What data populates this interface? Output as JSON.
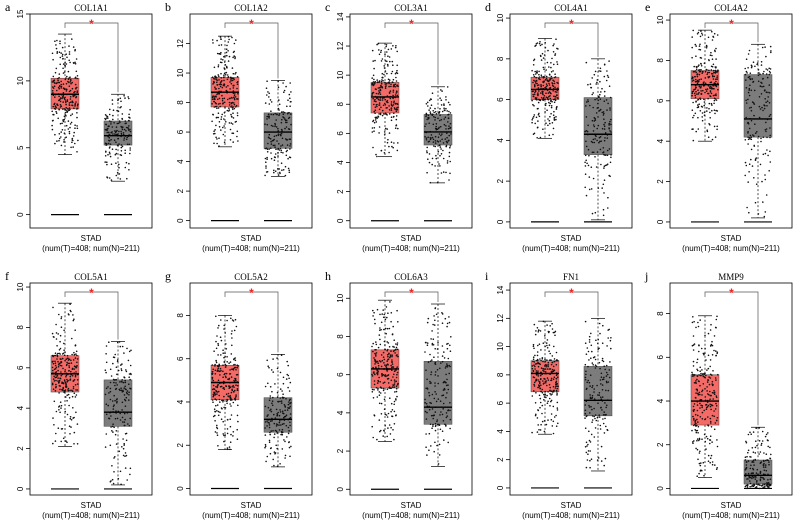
{
  "colors": {
    "tumor_box": "#f36a66",
    "normal_box": "#7c7c7c",
    "significance": "#e8262a",
    "points": "#111111",
    "frame": "#000000"
  },
  "chart_data": [
    {
      "type": "box",
      "panel": "a",
      "title": "COL1A1",
      "ylim": [
        -1,
        15
      ],
      "yticks": [
        0,
        5,
        10,
        15
      ],
      "xlabel": "STAD",
      "xsublabel": "(num(T)=408; num(N)=211)",
      "significance": "*",
      "tumor": {
        "q1": 7.9,
        "median": 9.0,
        "q3": 10.2,
        "whisker_low": 4.5,
        "whisker_high": 13.5,
        "baseline": 0
      },
      "normal": {
        "q1": 5.2,
        "median": 5.9,
        "q3": 7.0,
        "whisker_low": 2.5,
        "whisker_high": 9.0,
        "baseline": 0
      }
    },
    {
      "type": "box",
      "panel": "b",
      "title": "COL1A2",
      "ylim": [
        -0.5,
        14
      ],
      "yticks": [
        0,
        2,
        4,
        6,
        8,
        10,
        12
      ],
      "xlabel": "STAD",
      "xsublabel": "(num(T)=408; num(N)=211)",
      "significance": "*",
      "tumor": {
        "q1": 7.7,
        "median": 8.7,
        "q3": 9.7,
        "whisker_low": 5.0,
        "whisker_high": 12.5,
        "baseline": 0
      },
      "normal": {
        "q1": 4.9,
        "median": 6.0,
        "q3": 7.3,
        "whisker_low": 3.0,
        "whisker_high": 9.5,
        "baseline": 0
      }
    },
    {
      "type": "box",
      "panel": "c",
      "title": "COL3A1",
      "ylim": [
        -0.5,
        14.2
      ],
      "yticks": [
        0,
        2,
        4,
        6,
        8,
        10,
        12,
        14
      ],
      "xlabel": "STAD",
      "xsublabel": "(num(T)=408; num(N)=211)",
      "significance": "*",
      "tumor": {
        "q1": 7.4,
        "median": 8.5,
        "q3": 9.5,
        "whisker_low": 4.4,
        "whisker_high": 12.2,
        "baseline": 0
      },
      "normal": {
        "q1": 5.2,
        "median": 6.1,
        "q3": 7.3,
        "whisker_low": 2.6,
        "whisker_high": 9.2,
        "baseline": 0
      }
    },
    {
      "type": "box",
      "panel": "d",
      "title": "COL4A1",
      "ylim": [
        -0.3,
        10.2
      ],
      "yticks": [
        0,
        2,
        4,
        6,
        8,
        10
      ],
      "xlabel": "STAD",
      "xsublabel": "(num(T)=408; num(N)=211)",
      "significance": "*",
      "tumor": {
        "q1": 6.0,
        "median": 6.5,
        "q3": 7.1,
        "whisker_low": 4.1,
        "whisker_high": 9.0,
        "baseline": 0
      },
      "normal": {
        "q1": 3.3,
        "median": 4.3,
        "q3": 6.1,
        "whisker_low": 0.1,
        "whisker_high": 8.0,
        "baseline": 0
      }
    },
    {
      "type": "box",
      "panel": "e",
      "title": "COL4A2",
      "ylim": [
        -0.3,
        10.3
      ],
      "yticks": [
        0,
        2,
        4,
        6,
        8,
        10
      ],
      "xlabel": "STAD",
      "xsublabel": "(num(T)=408; num(N)=211)",
      "significance": "*",
      "tumor": {
        "q1": 6.1,
        "median": 6.8,
        "q3": 7.5,
        "whisker_low": 4.0,
        "whisker_high": 9.5,
        "baseline": 0
      },
      "normal": {
        "q1": 4.2,
        "median": 5.1,
        "q3": 7.3,
        "whisker_low": 0.2,
        "whisker_high": 8.8,
        "baseline": 0
      }
    },
    {
      "type": "box",
      "panel": "f",
      "title": "COL5A1",
      "ylim": [
        -0.3,
        10.2
      ],
      "yticks": [
        0,
        2,
        4,
        6,
        8,
        10
      ],
      "xlabel": "STAD",
      "xsublabel": "(num(T)=408; num(N)=211)",
      "significance": "*",
      "tumor": {
        "q1": 4.8,
        "median": 5.7,
        "q3": 6.6,
        "whisker_low": 2.1,
        "whisker_high": 9.2,
        "baseline": 0
      },
      "normal": {
        "q1": 3.1,
        "median": 3.8,
        "q3": 5.4,
        "whisker_low": 0.2,
        "whisker_high": 7.3,
        "baseline": 0
      }
    },
    {
      "type": "box",
      "panel": "g",
      "title": "COL5A2",
      "ylim": [
        -0.3,
        9.5
      ],
      "yticks": [
        0,
        2,
        4,
        6,
        8
      ],
      "xlabel": "STAD",
      "xsublabel": "(num(T)=408; num(N)=211)",
      "significance": "*",
      "tumor": {
        "q1": 4.1,
        "median": 4.9,
        "q3": 5.7,
        "whisker_low": 1.8,
        "whisker_high": 8.0,
        "baseline": 0
      },
      "normal": {
        "q1": 2.6,
        "median": 3.2,
        "q3": 4.2,
        "whisker_low": 1.0,
        "whisker_high": 6.2,
        "baseline": 0
      }
    },
    {
      "type": "box",
      "panel": "h",
      "title": "COL6A3",
      "ylim": [
        -0.3,
        10.8
      ],
      "yticks": [
        0,
        2,
        4,
        6,
        8,
        10
      ],
      "xlabel": "STAD",
      "xsublabel": "(num(T)=408; num(N)=211)",
      "significance": "*",
      "tumor": {
        "q1": 5.3,
        "median": 6.3,
        "q3": 7.3,
        "whisker_low": 2.5,
        "whisker_high": 9.9,
        "baseline": 0
      },
      "normal": {
        "q1": 3.4,
        "median": 4.3,
        "q3": 6.7,
        "whisker_low": 1.2,
        "whisker_high": 9.7,
        "baseline": 0
      }
    },
    {
      "type": "box",
      "panel": "i",
      "title": "FN1",
      "ylim": [
        -0.5,
        14.5
      ],
      "yticks": [
        0,
        2,
        4,
        6,
        8,
        10,
        12,
        14
      ],
      "xlabel": "STAD",
      "xsublabel": "(num(T)=408; num(N)=211)",
      "significance": "*",
      "tumor": {
        "q1": 6.8,
        "median": 8.1,
        "q3": 9.0,
        "whisker_low": 3.8,
        "whisker_high": 11.8,
        "baseline": 0
      },
      "normal": {
        "q1": 5.1,
        "median": 6.2,
        "q3": 8.6,
        "whisker_low": 1.2,
        "whisker_high": 12.0,
        "baseline": 0
      }
    },
    {
      "type": "box",
      "panel": "j",
      "title": "MMP9",
      "ylim": [
        -0.3,
        9.4
      ],
      "yticks": [
        0,
        2,
        4,
        6,
        8
      ],
      "xlabel": "STAD",
      "xsublabel": "(num(T)=408; num(N)=211)",
      "significance": "*",
      "tumor": {
        "q1": 2.9,
        "median": 4.0,
        "q3": 5.2,
        "whisker_low": 0.5,
        "whisker_high": 7.9,
        "baseline": 0
      },
      "normal": {
        "q1": 0.2,
        "median": 0.6,
        "q3": 1.3,
        "whisker_low": 0.0,
        "whisker_high": 2.8,
        "baseline": 0
      }
    }
  ]
}
